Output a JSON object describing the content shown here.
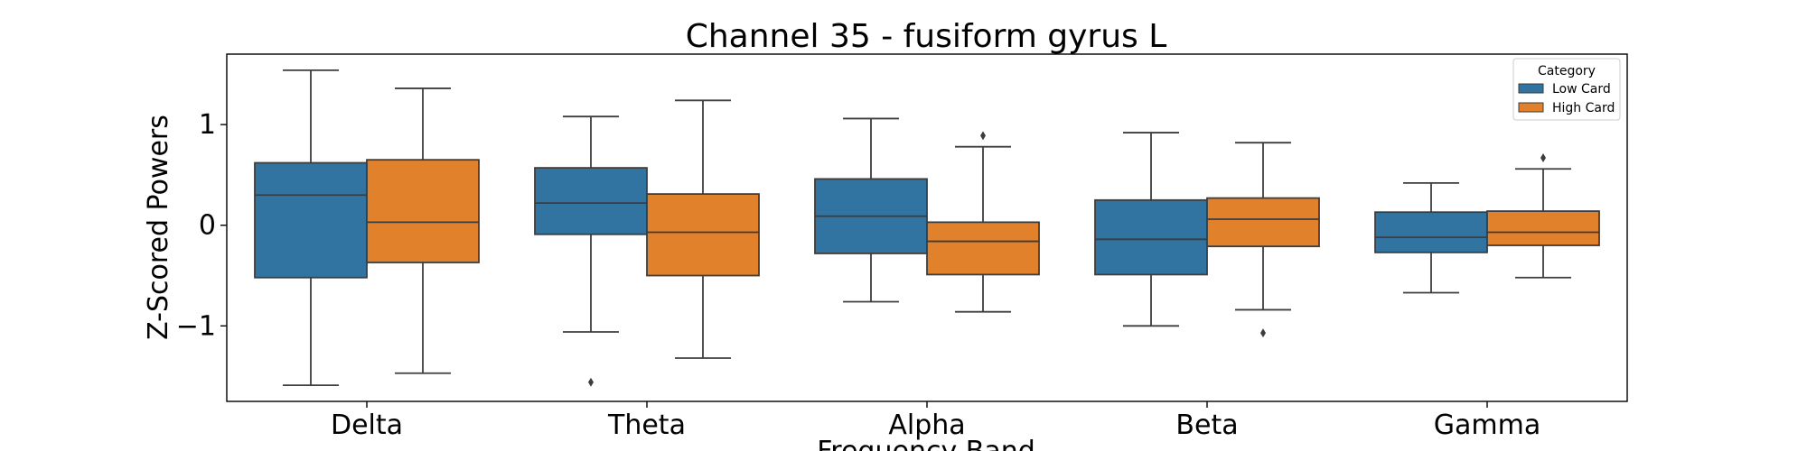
{
  "chart_data": {
    "type": "boxplot",
    "title": "Channel 35 - fusiform gyrus L",
    "xlabel": "Frequency Band",
    "ylabel": "Z-Scored Powers",
    "categories": [
      "Delta",
      "Theta",
      "Alpha",
      "Beta",
      "Gamma"
    ],
    "ylim": [
      -1.75,
      1.7
    ],
    "yticks": [
      -1,
      0,
      1
    ],
    "ytick_labels": [
      "−1",
      "0",
      "1"
    ],
    "grid": false,
    "legend": {
      "title": "Category",
      "placement": "top-right"
    },
    "series": [
      {
        "name": "Low Card",
        "color": "#3274a1",
        "boxes": [
          {
            "whislo": -1.59,
            "q1": -0.52,
            "med": 0.3,
            "q3": 0.62,
            "whishi": 1.54,
            "fliers": []
          },
          {
            "whislo": -1.06,
            "q1": -0.09,
            "med": 0.22,
            "q3": 0.57,
            "whishi": 1.08,
            "fliers": [
              -1.56
            ]
          },
          {
            "whislo": -0.76,
            "q1": -0.28,
            "med": 0.09,
            "q3": 0.46,
            "whishi": 1.06,
            "fliers": []
          },
          {
            "whislo": -1.0,
            "q1": -0.49,
            "med": -0.14,
            "q3": 0.25,
            "whishi": 0.92,
            "fliers": []
          },
          {
            "whislo": -0.67,
            "q1": -0.27,
            "med": -0.12,
            "q3": 0.13,
            "whishi": 0.42,
            "fliers": []
          }
        ]
      },
      {
        "name": "High Card",
        "color": "#e1812c",
        "boxes": [
          {
            "whislo": -1.47,
            "q1": -0.37,
            "med": 0.03,
            "q3": 0.65,
            "whishi": 1.36,
            "fliers": []
          },
          {
            "whislo": -1.32,
            "q1": -0.5,
            "med": -0.07,
            "q3": 0.31,
            "whishi": 1.24,
            "fliers": []
          },
          {
            "whislo": -0.86,
            "q1": -0.49,
            "med": -0.16,
            "q3": 0.03,
            "whishi": 0.78,
            "fliers": [
              0.89
            ]
          },
          {
            "whislo": -0.84,
            "q1": -0.21,
            "med": 0.06,
            "q3": 0.27,
            "whishi": 0.82,
            "fliers": [
              -1.07
            ]
          },
          {
            "whislo": -0.52,
            "q1": -0.2,
            "med": -0.07,
            "q3": 0.14,
            "whishi": 0.56,
            "fliers": [
              0.67
            ]
          }
        ]
      }
    ]
  }
}
